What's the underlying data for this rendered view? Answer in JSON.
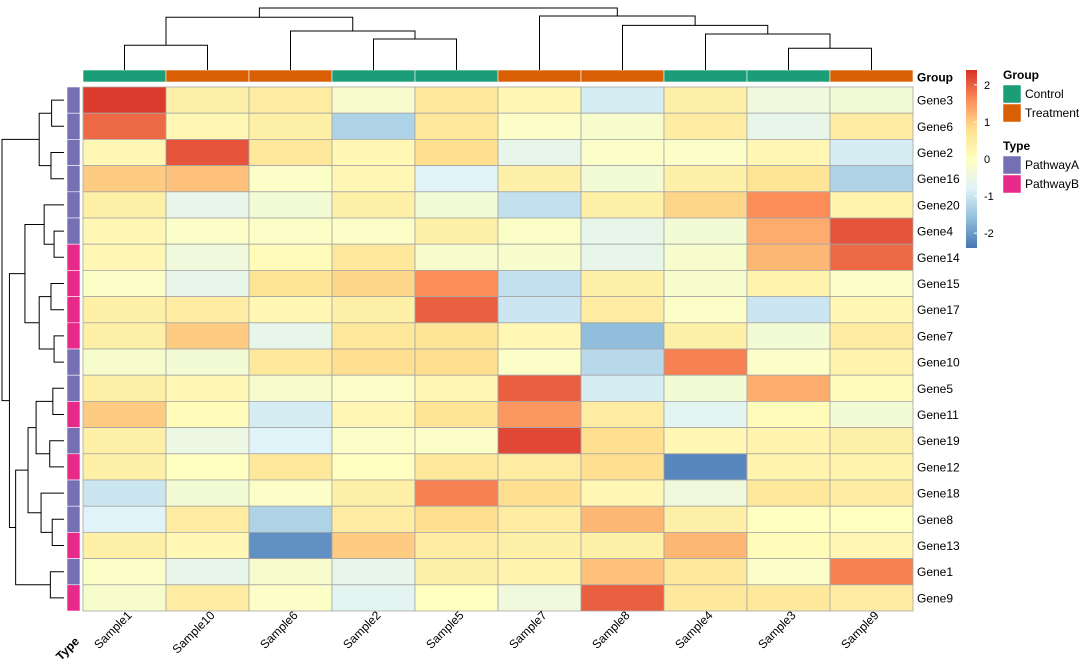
{
  "chart_data": {
    "type": "heatmap",
    "columns": [
      "Sample1",
      "Sample10",
      "Sample6",
      "Sample2",
      "Sample5",
      "Sample7",
      "Sample8",
      "Sample4",
      "Sample3",
      "Sample9"
    ],
    "rows": [
      "Gene3",
      "Gene6",
      "Gene2",
      "Gene16",
      "Gene20",
      "Gene4",
      "Gene14",
      "Gene15",
      "Gene17",
      "Gene7",
      "Gene10",
      "Gene5",
      "Gene11",
      "Gene19",
      "Gene12",
      "Gene18",
      "Gene8",
      "Gene13",
      "Gene1",
      "Gene9"
    ],
    "values": [
      [
        2.3,
        0.4,
        0.5,
        -0.2,
        0.6,
        0.2,
        -0.9,
        0.4,
        -0.4,
        -0.3
      ],
      [
        1.9,
        0.2,
        0.4,
        -1.3,
        0.6,
        -0.1,
        -0.2,
        0.5,
        -0.6,
        0.5
      ],
      [
        0.2,
        2.1,
        0.6,
        0.2,
        0.8,
        -0.6,
        -0.1,
        -0.1,
        0.2,
        -0.9
      ],
      [
        1.0,
        1.1,
        -0.1,
        0.2,
        -0.8,
        0.4,
        -0.3,
        0.4,
        0.7,
        -1.3
      ],
      [
        0.4,
        -0.6,
        -0.3,
        0.4,
        -0.3,
        -1.1,
        0.4,
        0.9,
        1.6,
        0.3
      ],
      [
        0.2,
        -0.1,
        -0.1,
        -0.1,
        0.4,
        -0.1,
        -0.6,
        -0.3,
        1.3,
        2.1
      ],
      [
        0.2,
        -0.4,
        0.1,
        0.6,
        -0.2,
        -0.2,
        -0.6,
        -0.2,
        1.2,
        1.9
      ],
      [
        -0.1,
        -0.6,
        0.7,
        0.9,
        1.6,
        -1.1,
        0.4,
        -0.2,
        0.3,
        -0.1
      ],
      [
        0.4,
        0.5,
        0.2,
        0.4,
        2.0,
        -1.0,
        0.5,
        -0.1,
        -1.0,
        0.2
      ],
      [
        0.4,
        1.0,
        -0.6,
        0.6,
        0.7,
        0.2,
        -1.6,
        0.4,
        -0.3,
        0.5
      ],
      [
        -0.2,
        -0.3,
        0.6,
        0.8,
        0.8,
        -0.1,
        -1.2,
        1.7,
        -0.1,
        0.3
      ],
      [
        0.4,
        0.2,
        -0.2,
        -0.1,
        0.2,
        2.0,
        -0.9,
        -0.3,
        1.3,
        0.1
      ],
      [
        1.0,
        0.1,
        -0.9,
        0.2,
        0.7,
        1.5,
        0.5,
        -0.7,
        0.1,
        -0.3
      ],
      [
        0.4,
        -0.5,
        -0.8,
        -0.1,
        -0.1,
        2.2,
        0.8,
        0.2,
        0.3,
        0.4
      ],
      [
        0.4,
        0.0,
        0.6,
        0.0,
        0.6,
        0.5,
        0.8,
        -2.2,
        0.3,
        0.3
      ],
      [
        -1.0,
        -0.3,
        -0.1,
        0.4,
        1.7,
        0.8,
        0.2,
        -0.4,
        0.6,
        0.5
      ],
      [
        -0.8,
        0.5,
        -1.3,
        0.5,
        0.8,
        0.5,
        1.2,
        0.4,
        0.0,
        0.0
      ],
      [
        0.4,
        0.2,
        -2.1,
        1.0,
        0.5,
        0.4,
        0.4,
        1.2,
        0.1,
        0.2
      ],
      [
        -0.1,
        -0.6,
        -0.2,
        -0.6,
        0.4,
        0.3,
        1.1,
        0.6,
        -0.1,
        1.7
      ],
      [
        -0.2,
        0.5,
        -0.1,
        -0.7,
        0.0,
        -0.4,
        2.0,
        0.6,
        0.6,
        0.5
      ]
    ],
    "column_annotation": {
      "label": "Group",
      "values": [
        "Control",
        "Treatment",
        "Treatment",
        "Control",
        "Control",
        "Treatment",
        "Treatment",
        "Control",
        "Control",
        "Treatment"
      ]
    },
    "row_annotation": {
      "label": "Type",
      "values": [
        "PathwayA",
        "PathwayA",
        "PathwayA",
        "PathwayA",
        "PathwayA",
        "PathwayA",
        "PathwayB",
        "PathwayB",
        "PathwayB",
        "PathwayB",
        "PathwayA",
        "PathwayA",
        "PathwayB",
        "PathwayA",
        "PathwayB",
        "PathwayA",
        "PathwayA",
        "PathwayB",
        "PathwayA",
        "PathwayB"
      ]
    },
    "color_scale": {
      "range": [
        -2.4,
        2.4
      ],
      "ticks": [
        2,
        1,
        0,
        -1,
        -2
      ],
      "colors": [
        "#4575b4",
        "#91bfdb",
        "#e0f3f8",
        "#ffffbf",
        "#fee090",
        "#fc8d59",
        "#d73027"
      ]
    },
    "legend": {
      "placement": "right",
      "groups": [
        {
          "title": "Group",
          "items": [
            {
              "label": "Control",
              "color": "#1b9e77"
            },
            {
              "label": "Treatment",
              "color": "#d95f02"
            }
          ]
        },
        {
          "title": "Type",
          "items": [
            {
              "label": "PathwayA",
              "color": "#7570b3"
            },
            {
              "label": "PathwayB",
              "color": "#e7298a"
            }
          ]
        }
      ]
    },
    "dendrograms": {
      "columns": [
        "Sample1",
        "Sample10",
        "Sample6",
        "Sample2",
        "Sample5",
        "Sample7",
        "Sample8",
        "Sample4",
        "Sample3",
        "Sample9"
      ],
      "rows": [
        "Gene3",
        "Gene6",
        "Gene2",
        "Gene16",
        "Gene20",
        "Gene4",
        "Gene14",
        "Gene15",
        "Gene17",
        "Gene7",
        "Gene10",
        "Gene5",
        "Gene11",
        "Gene19",
        "Gene12",
        "Gene18",
        "Gene8",
        "Gene13",
        "Gene1",
        "Gene9"
      ]
    }
  }
}
